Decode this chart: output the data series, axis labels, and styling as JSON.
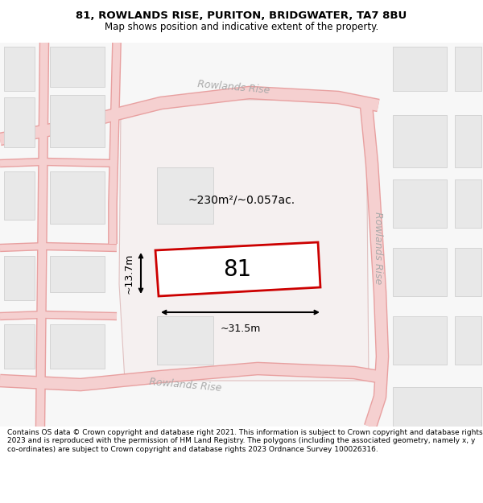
{
  "title_line1": "81, ROWLANDS RISE, PURITON, BRIDGWATER, TA7 8BU",
  "title_line2": "Map shows position and indicative extent of the property.",
  "footer_text": "Contains OS data © Crown copyright and database right 2021. This information is subject to Crown copyright and database rights 2023 and is reproduced with the permission of HM Land Registry. The polygons (including the associated geometry, namely x, y co-ordinates) are subject to Crown copyright and database rights 2023 Ordnance Survey 100026316.",
  "map_bg": "#ffffff",
  "road_fill": "#f5d0d0",
  "road_border": "#e8a0a0",
  "building_fill": "#e8e8e8",
  "building_border": "#d0d0d0",
  "plot_fill": "#ffffff",
  "plot_border": "#cc0000",
  "large_block_fill": "#f5f0f0",
  "large_block_border": "#e0c0c0",
  "plot_label": "81",
  "area_label": "~230m²/~0.057ac.",
  "dim_width": "~31.5m",
  "dim_height": "~13.7m",
  "road_label_color": "#aaaaaa",
  "title_fontsize": 9.5,
  "subtitle_fontsize": 8.5,
  "footer_fontsize": 6.5
}
